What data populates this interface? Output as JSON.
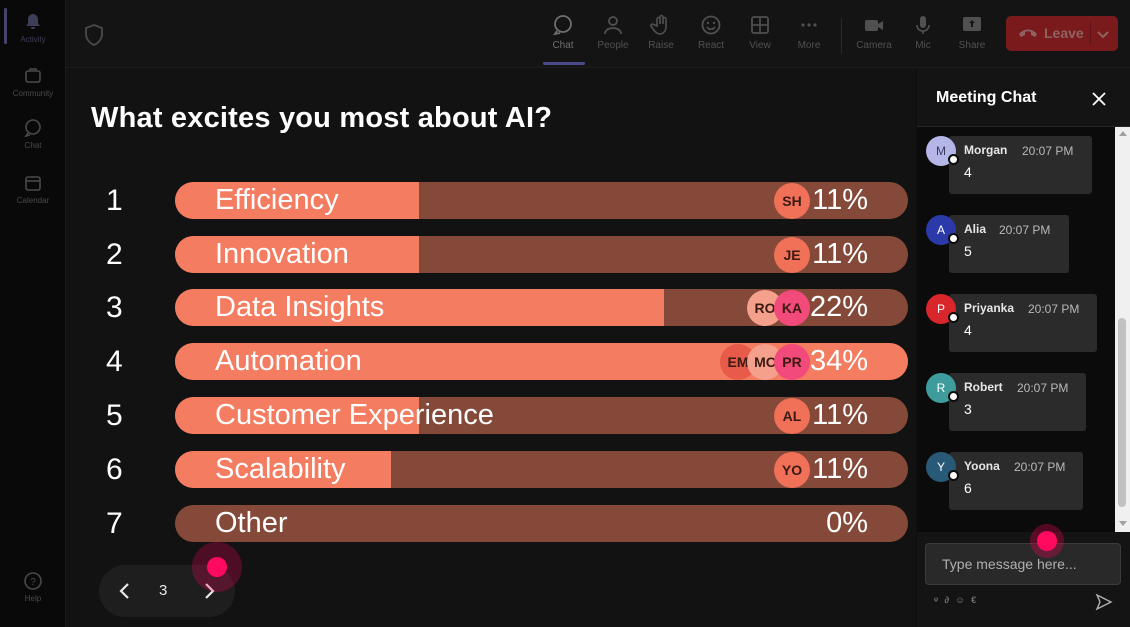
{
  "rail": {
    "items": [
      {
        "label": "Activity",
        "icon": "bell-icon"
      },
      {
        "label": "Community",
        "icon": "community-icon"
      },
      {
        "label": "Chat",
        "icon": "chat-icon"
      },
      {
        "label": "Calendar",
        "icon": "calendar-icon"
      }
    ],
    "help": {
      "label": "Help",
      "icon": "help-icon"
    }
  },
  "toolbar": {
    "chat": "Chat",
    "people": "People",
    "raise": "Raise",
    "react": "React",
    "view": "View",
    "more": "More",
    "camera": "Camera",
    "mic": "Mic",
    "share": "Share",
    "leave": "Leave"
  },
  "poll": {
    "question": "What excites you most about AI?",
    "options": [
      {
        "num": "1",
        "label": "Efficiency",
        "percent_text": "11%",
        "percent": 11,
        "voters": [
          "SH"
        ]
      },
      {
        "num": "2",
        "label": "Innovation",
        "percent_text": "11%",
        "percent": 11,
        "voters": [
          "JE"
        ]
      },
      {
        "num": "3",
        "label": "Data Insights",
        "percent_text": "22%",
        "percent": 22,
        "voters": [
          "RO",
          "KA"
        ]
      },
      {
        "num": "4",
        "label": "Automation",
        "percent_text": "34%",
        "percent": 34,
        "voters": [
          "EM",
          "MC",
          "PR"
        ]
      },
      {
        "num": "5",
        "label": "Customer Experience",
        "percent_text": "11%",
        "percent": 11,
        "voters": [
          "AL"
        ]
      },
      {
        "num": "6",
        "label": "Scalability",
        "percent_text": "11%",
        "percent": 11,
        "voters": [
          "YO"
        ]
      },
      {
        "num": "7",
        "label": "Other",
        "percent_text": "0%",
        "percent": 0,
        "voters": []
      }
    ]
  },
  "pager": {
    "page": "3"
  },
  "chat": {
    "title": "Meeting Chat",
    "messages": [
      {
        "name": "Morgan",
        "time": "20:07 PM",
        "text": "4",
        "initial": "M",
        "color": "#b3b6e6"
      },
      {
        "name": "Alia",
        "time": "20:07 PM",
        "text": "5",
        "initial": "A",
        "color": "#2b3aa8"
      },
      {
        "name": "Priyanka",
        "time": "20:07 PM",
        "text": "4",
        "initial": "P",
        "color": "#d8262a"
      },
      {
        "name": "Robert",
        "time": "20:07 PM",
        "text": "3",
        "initial": "R",
        "color": "#3f9c9c"
      },
      {
        "name": "Yoona",
        "time": "20:07 PM",
        "text": "6",
        "initial": "Y",
        "color": "#285a78"
      }
    ],
    "input_placeholder": "Type message here...",
    "tools": "ᵠ ∂ ☺ €"
  },
  "colors": {
    "bar_track": "#85493a",
    "bar_fill": "#f47c60",
    "leave": "#7a1a1c",
    "cursor": "#ff0a5e"
  }
}
